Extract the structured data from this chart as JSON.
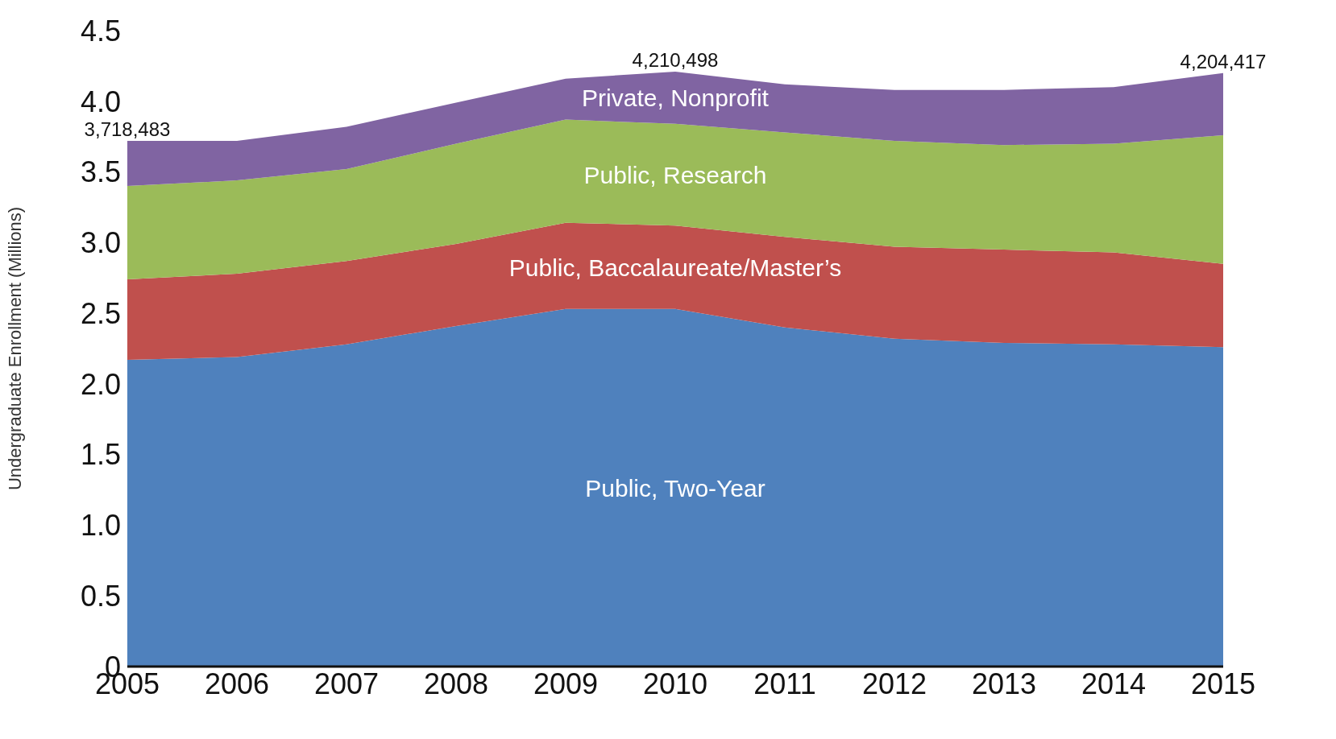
{
  "chart_data": {
    "type": "area",
    "stacked": true,
    "ylabel": "Undergraduate Enrollment (Millions)",
    "x": [
      2005,
      2006,
      2007,
      2008,
      2009,
      2010,
      2011,
      2012,
      2013,
      2014,
      2015
    ],
    "xlim": [
      2005,
      2015
    ],
    "xticks": [
      2005,
      2006,
      2007,
      2008,
      2009,
      2010,
      2011,
      2012,
      2013,
      2014,
      2015
    ],
    "ylim": [
      0,
      4.5
    ],
    "yticks": [
      0,
      {
        "value": 0.5,
        "label": "0.5"
      },
      {
        "value": 1,
        "label": "1.0"
      },
      {
        "value": 1.5,
        "label": "1.5"
      },
      {
        "value": 2,
        "label": "2.0"
      },
      {
        "value": 2.5,
        "label": "2.5"
      },
      {
        "value": 3,
        "label": "3.0"
      },
      {
        "value": 3.5,
        "label": "3.5"
      },
      {
        "value": 4,
        "label": "4.0"
      },
      {
        "value": 4.5,
        "label": "4.5"
      }
    ],
    "grid": false,
    "legend": false,
    "series": [
      {
        "name": "Public, Two-Year",
        "color": "#4f81bd",
        "values": [
          2.17,
          2.19,
          2.28,
          2.41,
          2.53,
          2.53,
          2.4,
          2.32,
          2.29,
          2.28,
          2.26
        ]
      },
      {
        "name": "Public, Baccalaureate/Master’s",
        "color": "#c0504d",
        "values": [
          0.57,
          0.59,
          0.59,
          0.58,
          0.61,
          0.59,
          0.64,
          0.65,
          0.66,
          0.65,
          0.59
        ]
      },
      {
        "name": "Public, Research",
        "color": "#9bbb59",
        "values": [
          0.66,
          0.66,
          0.65,
          0.71,
          0.73,
          0.72,
          0.74,
          0.75,
          0.74,
          0.77,
          0.91
        ]
      },
      {
        "name": "Private, Nonprofit",
        "color": "#8064a2",
        "values": [
          0.32,
          0.28,
          0.3,
          0.29,
          0.29,
          0.37,
          0.34,
          0.36,
          0.39,
          0.4,
          0.44
        ]
      }
    ],
    "annotations": [
      {
        "text": "3,718,483",
        "x": 2005,
        "y": 3.72
      },
      {
        "text": "4,210,498",
        "x": 2010,
        "y": 4.21
      },
      {
        "text": "4,204,417",
        "x": 2015,
        "y": 4.2
      }
    ]
  }
}
